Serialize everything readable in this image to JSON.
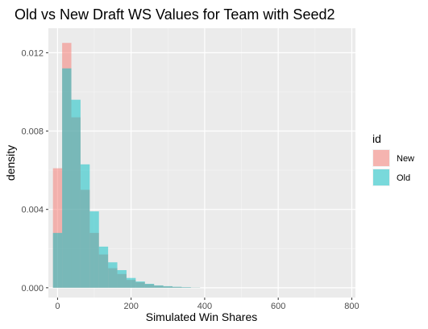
{
  "chart_data": {
    "type": "histogram",
    "title": "Old vs New Draft WS Values for Team with Seed2",
    "xlabel": "Simulated Win Shares",
    "ylabel": "density",
    "xlim": [
      -25,
      810
    ],
    "ylim": [
      -0.0005,
      0.01325
    ],
    "x_ticks": [
      0,
      200,
      400,
      600,
      800
    ],
    "x_tick_labels": [
      "0",
      "200",
      "400",
      "600",
      "800"
    ],
    "y_ticks": [
      0,
      0.004,
      0.008,
      0.012
    ],
    "y_tick_labels": [
      "0.000",
      "0.004",
      "0.008",
      "0.012"
    ],
    "bin_edges": [
      -12.5,
      12.5,
      37.5,
      62.5,
      87.5,
      112.5,
      137.5,
      162.5,
      187.5,
      212.5,
      237.5,
      262.5,
      287.5,
      312.5,
      337.5,
      362.5,
      387.5
    ],
    "series": [
      {
        "name": "New",
        "color": "#F8766D",
        "values": [
          0.0061,
          0.0125,
          0.0087,
          0.005,
          0.0028,
          0.0017,
          0.001,
          0.0007,
          0.0004,
          0.00028,
          0.00018,
          0.00011,
          7e-05,
          4e-05,
          2e-05,
          1e-05
        ]
      },
      {
        "name": "Old",
        "color": "#00BFC4",
        "values": [
          0.0028,
          0.0112,
          0.0096,
          0.0063,
          0.0039,
          0.0021,
          0.0013,
          0.0009,
          0.0005,
          0.00032,
          0.0002,
          0.00012,
          8e-05,
          5e-05,
          3e-05,
          1e-05
        ]
      }
    ],
    "fill_opacity": 0.5,
    "grid": true,
    "legend": {
      "title": "id",
      "position": "right",
      "entries": [
        "New",
        "Old"
      ]
    }
  }
}
